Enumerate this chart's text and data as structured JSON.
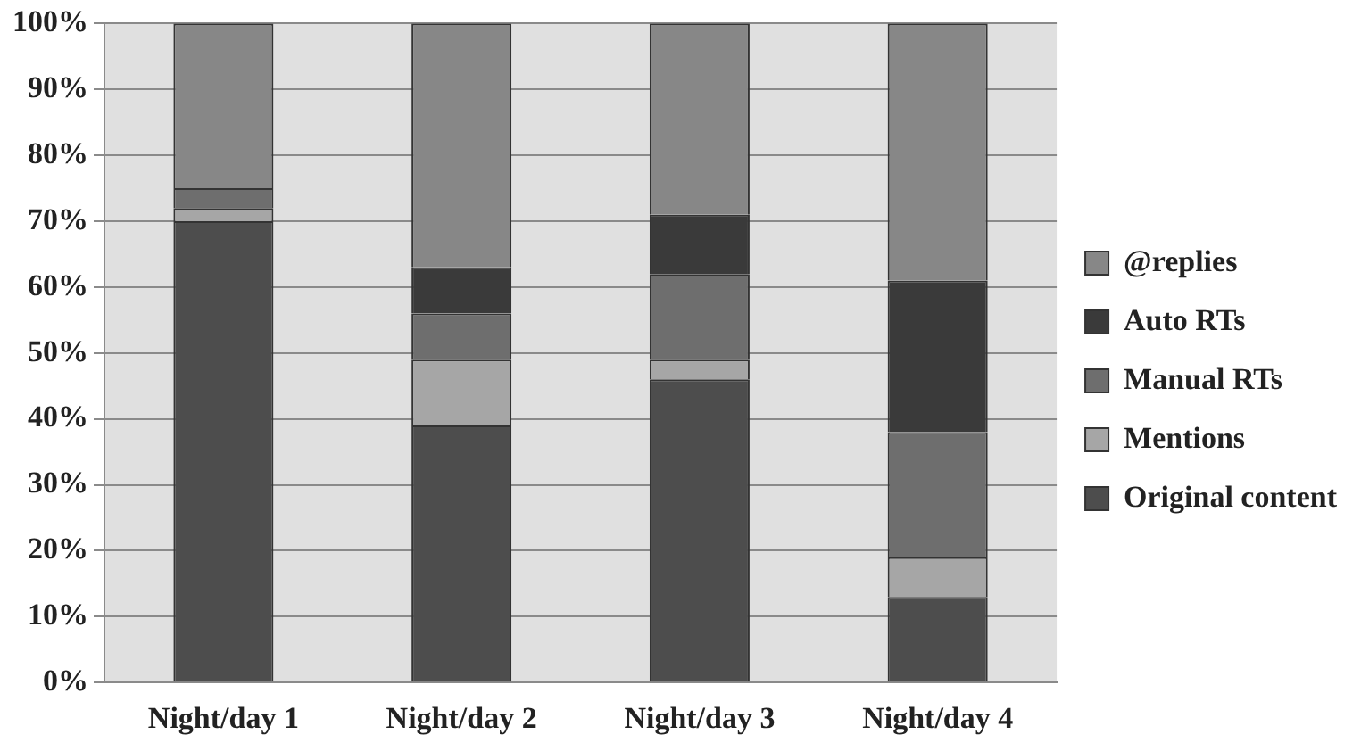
{
  "chart_data": {
    "type": "bar",
    "stacked": true,
    "categories": [
      "Night/day 1",
      "Night/day 2",
      "Night/day 3",
      "Night/day 4"
    ],
    "series": [
      {
        "name": "Original content",
        "color": "#4d4d4d",
        "values": [
          70,
          39,
          46,
          13
        ]
      },
      {
        "name": "Mentions",
        "color": "#a6a6a6",
        "values": [
          2,
          10,
          3,
          6
        ]
      },
      {
        "name": "Manual RTs",
        "color": "#6e6e6e",
        "values": [
          3,
          7,
          13,
          19
        ]
      },
      {
        "name": "Auto RTs",
        "color": "#3a3a3a",
        "values": [
          0,
          7,
          9,
          23
        ]
      },
      {
        "name": "@replies",
        "color": "#878787",
        "values": [
          25,
          37,
          29,
          39
        ]
      }
    ],
    "ylim": [
      0,
      100
    ],
    "yticks": [
      {
        "value": 0,
        "label": "0%"
      },
      {
        "value": 10,
        "label": "10%"
      },
      {
        "value": 20,
        "label": "20%"
      },
      {
        "value": 30,
        "label": "30%"
      },
      {
        "value": 40,
        "label": "40%"
      },
      {
        "value": 50,
        "label": "50%"
      },
      {
        "value": 60,
        "label": "60%"
      },
      {
        "value": 70,
        "label": "70%"
      },
      {
        "value": 80,
        "label": "80%"
      },
      {
        "value": 90,
        "label": "90%"
      },
      {
        "value": 100,
        "label": "100%"
      }
    ],
    "grid": "y",
    "legend": "right"
  }
}
